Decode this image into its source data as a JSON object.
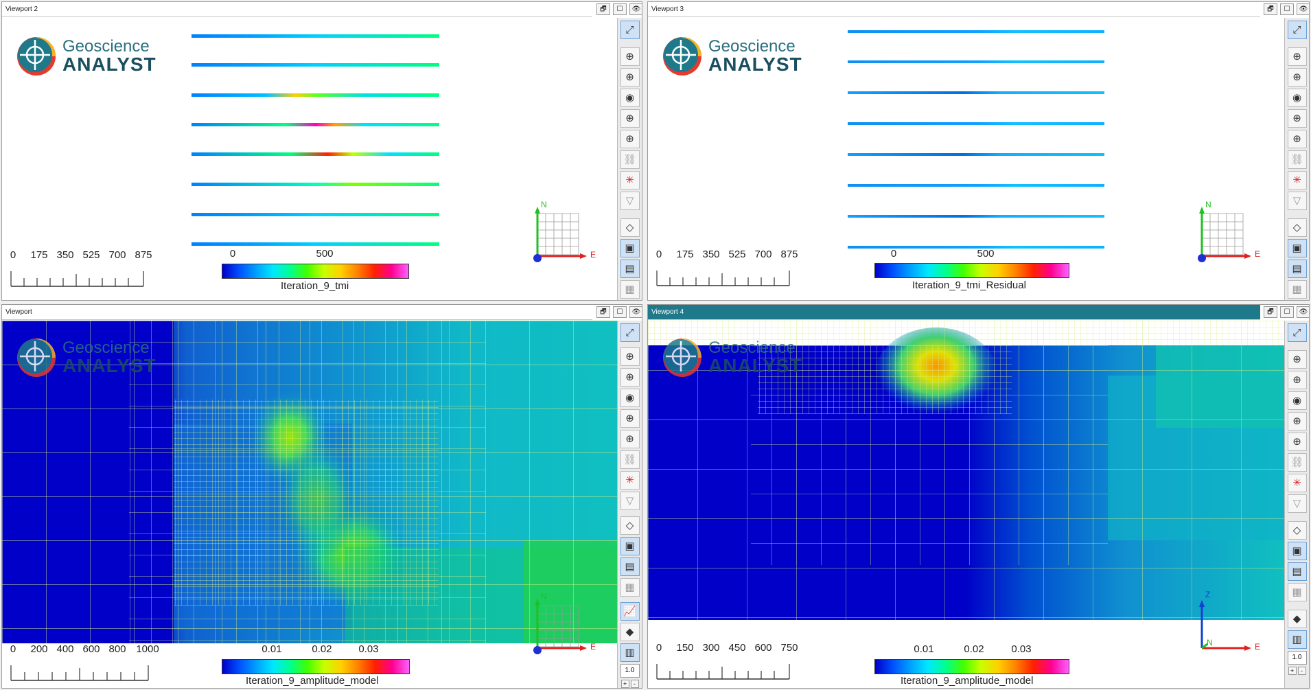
{
  "viewports": {
    "v2": {
      "title": "Viewport 2",
      "logo_line1": "Geoscience",
      "logo_line2": "ANALYST",
      "scale_labels": [
        "0",
        "175",
        "350",
        "525",
        "700",
        "875"
      ],
      "colorbar_ticks": [
        "0",
        "500"
      ],
      "colorbar_label": "Iteration_9_tmi",
      "axis_n": "N",
      "axis_e": "E"
    },
    "v3": {
      "title": "Viewport 3",
      "logo_line1": "Geoscience",
      "logo_line2": "ANALYST",
      "scale_labels": [
        "0",
        "175",
        "350",
        "525",
        "700",
        "875"
      ],
      "colorbar_ticks": [
        "0",
        "500"
      ],
      "colorbar_label": "Iteration_9_tmi_Residual",
      "axis_n": "N",
      "axis_e": "E"
    },
    "v1": {
      "title": "Viewport",
      "logo_line1": "Geoscience",
      "logo_line2": "ANALYST",
      "scale_labels": [
        "0",
        "200",
        "400",
        "600",
        "800",
        "1000"
      ],
      "colorbar_ticks": [
        "0.01",
        "0.02",
        "0.03"
      ],
      "colorbar_label": "Iteration_9_amplitude_model",
      "axis_n": "N",
      "axis_e": "E",
      "zoom_value": "1.0"
    },
    "v4": {
      "title": "Viewport 4",
      "logo_line1": "Geoscience",
      "logo_line2": "ANALYST",
      "scale_labels": [
        "0",
        "150",
        "300",
        "450",
        "600",
        "750"
      ],
      "colorbar_ticks": [
        "0.01",
        "0.02",
        "0.03"
      ],
      "colorbar_label": "Iteration_9_amplitude_model",
      "axis_z": "Z",
      "axis_n": "N",
      "axis_e": "E",
      "zoom_value": "1.0"
    }
  },
  "window_buttons": {
    "restore": "🗗",
    "maximize": "☐",
    "visibility": "👁"
  },
  "colors": {
    "accent": "#1e7a8a",
    "background_blue": "#0000c8",
    "grid_line": "#d8f080"
  }
}
